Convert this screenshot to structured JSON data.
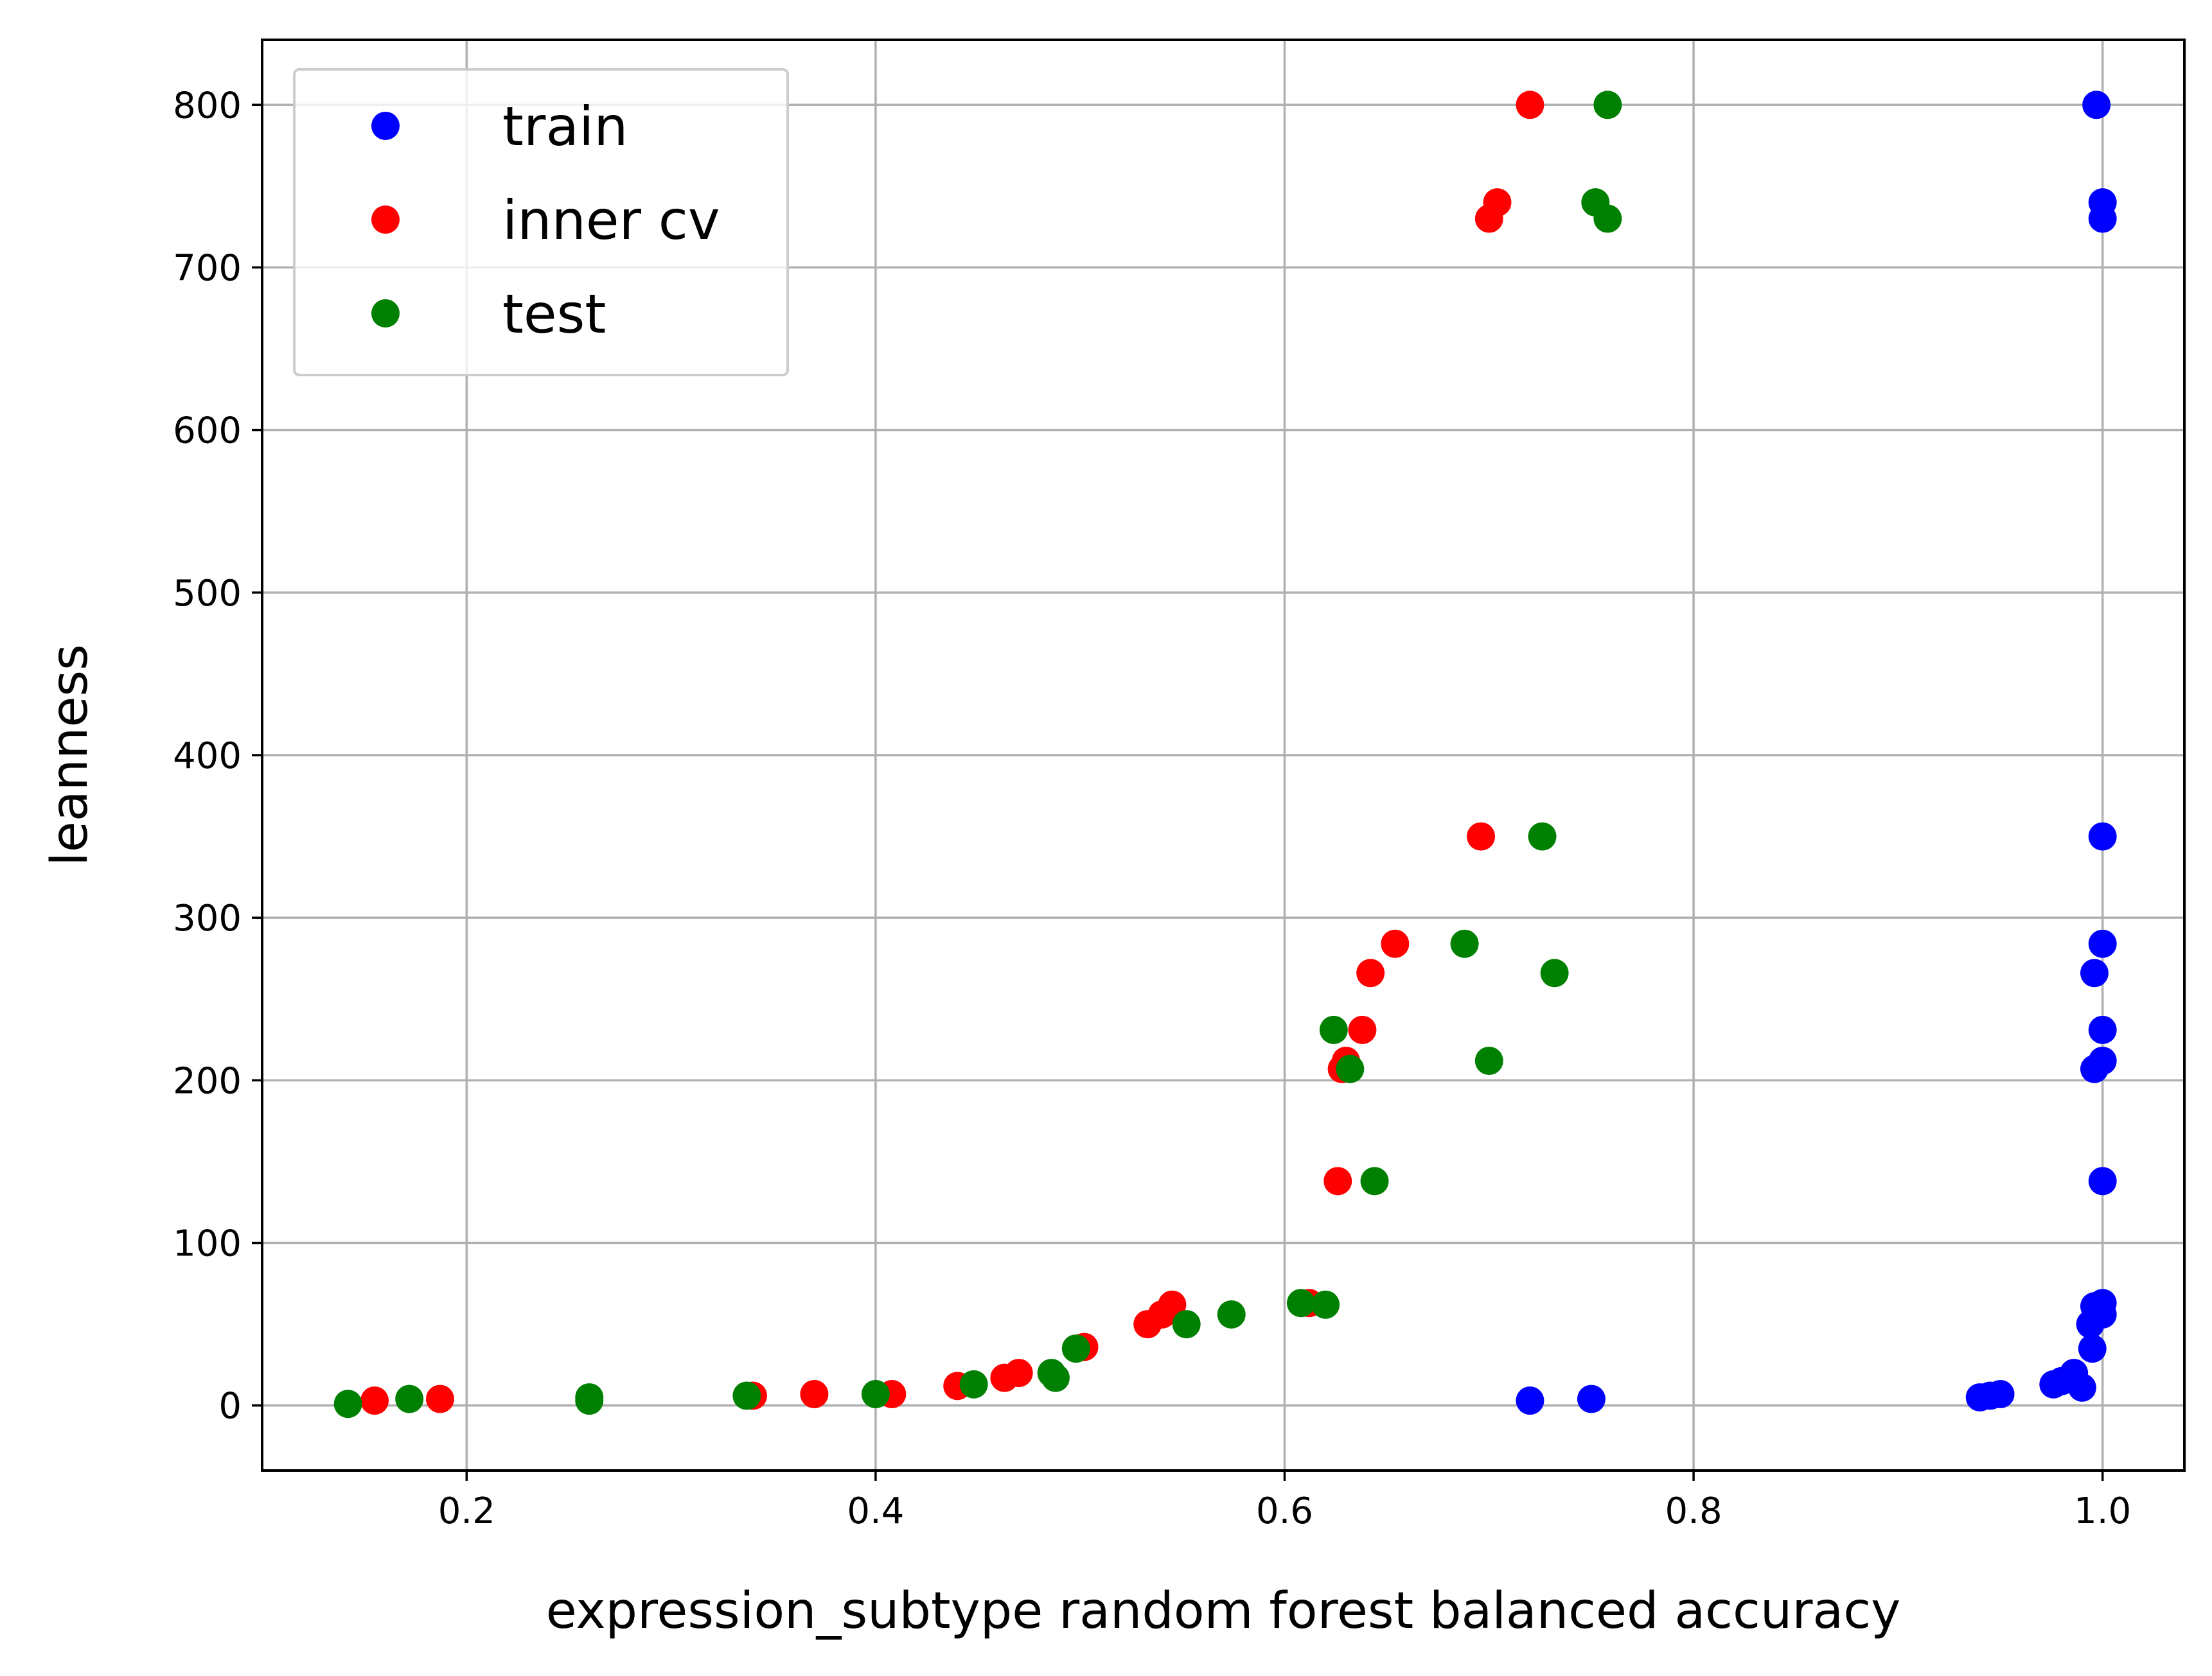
{
  "chart_data": {
    "type": "scatter",
    "title": "",
    "xlabel": "expression_subtype random forest balanced accuracy",
    "ylabel": "leanness",
    "xlim": [
      0.1,
      1.04
    ],
    "ylim": [
      -40,
      840
    ],
    "xticks": [
      0.2,
      0.4,
      0.6,
      0.8,
      1.0
    ],
    "xtick_labels": [
      "0.2",
      "0.4",
      "0.6",
      "0.8",
      "1.0"
    ],
    "yticks": [
      0,
      100,
      200,
      300,
      400,
      500,
      600,
      700,
      800
    ],
    "ytick_labels": [
      "0",
      "100",
      "200",
      "300",
      "400",
      "500",
      "600",
      "700",
      "800"
    ],
    "grid": true,
    "legend_position": "top-left",
    "series": [
      {
        "name": "train",
        "color": "#0000ff",
        "points": [
          [
            0.997,
            800
          ],
          [
            1.0,
            740
          ],
          [
            1.0,
            730
          ],
          [
            1.0,
            350
          ],
          [
            1.0,
            284
          ],
          [
            0.996,
            266
          ],
          [
            1.0,
            231
          ],
          [
            1.0,
            212
          ],
          [
            0.996,
            207
          ],
          [
            1.0,
            138
          ],
          [
            1.0,
            63
          ],
          [
            0.996,
            61
          ],
          [
            1.0,
            56
          ],
          [
            0.994,
            50
          ],
          [
            0.995,
            35
          ],
          [
            0.986,
            20
          ],
          [
            0.98,
            15
          ],
          [
            0.976,
            13
          ],
          [
            0.99,
            11
          ],
          [
            0.95,
            7
          ],
          [
            0.945,
            6
          ],
          [
            0.94,
            5
          ],
          [
            0.72,
            3
          ],
          [
            0.75,
            4
          ]
        ]
      },
      {
        "name": "inner cv",
        "color": "#ff0000",
        "points": [
          [
            0.72,
            800
          ],
          [
            0.704,
            740
          ],
          [
            0.7,
            730
          ],
          [
            0.696,
            350
          ],
          [
            0.654,
            284
          ],
          [
            0.642,
            266
          ],
          [
            0.638,
            231
          ],
          [
            0.63,
            212
          ],
          [
            0.628,
            207
          ],
          [
            0.626,
            138
          ],
          [
            0.612,
            63
          ],
          [
            0.545,
            62
          ],
          [
            0.54,
            56
          ],
          [
            0.533,
            50
          ],
          [
            0.502,
            36
          ],
          [
            0.47,
            20
          ],
          [
            0.463,
            17
          ],
          [
            0.44,
            12
          ],
          [
            0.408,
            7
          ],
          [
            0.37,
            7
          ],
          [
            0.34,
            6
          ],
          [
            0.187,
            4
          ],
          [
            0.155,
            3
          ]
        ]
      },
      {
        "name": "test",
        "color": "#008000",
        "points": [
          [
            0.758,
            800
          ],
          [
            0.752,
            740
          ],
          [
            0.758,
            730
          ],
          [
            0.726,
            350
          ],
          [
            0.688,
            284
          ],
          [
            0.732,
            266
          ],
          [
            0.624,
            231
          ],
          [
            0.7,
            212
          ],
          [
            0.632,
            207
          ],
          [
            0.644,
            138
          ],
          [
            0.608,
            63
          ],
          [
            0.62,
            62
          ],
          [
            0.574,
            56
          ],
          [
            0.552,
            50
          ],
          [
            0.498,
            35
          ],
          [
            0.486,
            20
          ],
          [
            0.488,
            17
          ],
          [
            0.448,
            13
          ],
          [
            0.4,
            7
          ],
          [
            0.337,
            6
          ],
          [
            0.26,
            5
          ],
          [
            0.26,
            3
          ],
          [
            0.172,
            4
          ],
          [
            0.142,
            1
          ]
        ]
      }
    ]
  }
}
